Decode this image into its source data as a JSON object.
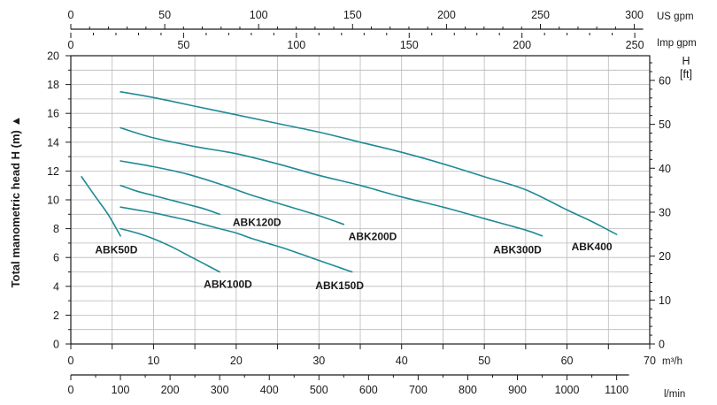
{
  "chart_data": {
    "type": "line",
    "ylabel": "Total manometric head H (m) ▲",
    "right_axis": {
      "label_top": "H",
      "label_unit": "[ft]",
      "ticks": [
        0,
        10,
        20,
        30,
        40,
        50,
        60
      ]
    },
    "x_axis_m3h": {
      "unit": "m³/h",
      "ticks": [
        0,
        10,
        20,
        30,
        40,
        50,
        60,
        70
      ],
      "range": [
        0,
        70
      ]
    },
    "x_axis_lmin": {
      "unit": "l/min",
      "ticks": [
        0,
        100,
        200,
        300,
        400,
        500,
        600,
        700,
        800,
        900,
        1000,
        1100
      ]
    },
    "x_axis_usgpm": {
      "unit": "US gpm",
      "ticks": [
        0,
        50,
        100,
        150,
        200,
        250,
        300
      ]
    },
    "x_axis_impgpm": {
      "unit": "Imp gpm",
      "ticks": [
        0,
        50,
        100,
        150,
        200,
        250
      ]
    },
    "y_axis_m": {
      "ticks": [
        0,
        2,
        4,
        6,
        8,
        10,
        12,
        14,
        16,
        18,
        20
      ],
      "range": [
        0,
        20
      ]
    },
    "grid": true,
    "curve_color": "#1e8a96",
    "series": [
      {
        "name": "ABK50D",
        "x": [
          1.3,
          3,
          4.5,
          6
        ],
        "y": [
          11.6,
          10.2,
          9.0,
          7.5
        ]
      },
      {
        "name": "ABK100D",
        "x": [
          6,
          8,
          10,
          12,
          14,
          16,
          18
        ],
        "y": [
          8.0,
          7.7,
          7.3,
          6.8,
          6.2,
          5.6,
          5.0
        ]
      },
      {
        "name": "ABK120D",
        "x": [
          6,
          8,
          10,
          12,
          14,
          16,
          18
        ],
        "y": [
          11.0,
          10.6,
          10.3,
          10.0,
          9.7,
          9.4,
          9.0
        ]
      },
      {
        "name": "ABK150D",
        "x": [
          6,
          8,
          10,
          12,
          14,
          16,
          18,
          20,
          22,
          24,
          26,
          28,
          30,
          32,
          34
        ],
        "y": [
          9.5,
          9.3,
          9.1,
          8.85,
          8.6,
          8.3,
          8.0,
          7.7,
          7.3,
          6.95,
          6.6,
          6.2,
          5.8,
          5.4,
          5.0
        ]
      },
      {
        "name": "ABK200D",
        "x": [
          6,
          10,
          14,
          18,
          20,
          22,
          26,
          30,
          33
        ],
        "y": [
          12.7,
          12.3,
          11.8,
          11.1,
          10.7,
          10.3,
          9.6,
          8.9,
          8.3
        ]
      },
      {
        "name": "ABK300D",
        "x": [
          6,
          10,
          15,
          20,
          25,
          30,
          35,
          40,
          45,
          50,
          55,
          57
        ],
        "y": [
          15.0,
          14.3,
          13.7,
          13.2,
          12.5,
          11.7,
          11.0,
          10.2,
          9.5,
          8.7,
          7.9,
          7.5
        ]
      },
      {
        "name": "ABK400",
        "x": [
          6,
          10,
          15,
          20,
          25,
          30,
          35,
          40,
          45,
          50,
          55,
          60,
          63,
          66
        ],
        "y": [
          17.5,
          17.1,
          16.5,
          15.9,
          15.3,
          14.7,
          14.0,
          13.3,
          12.5,
          11.6,
          10.7,
          9.3,
          8.5,
          7.6
        ]
      }
    ]
  }
}
